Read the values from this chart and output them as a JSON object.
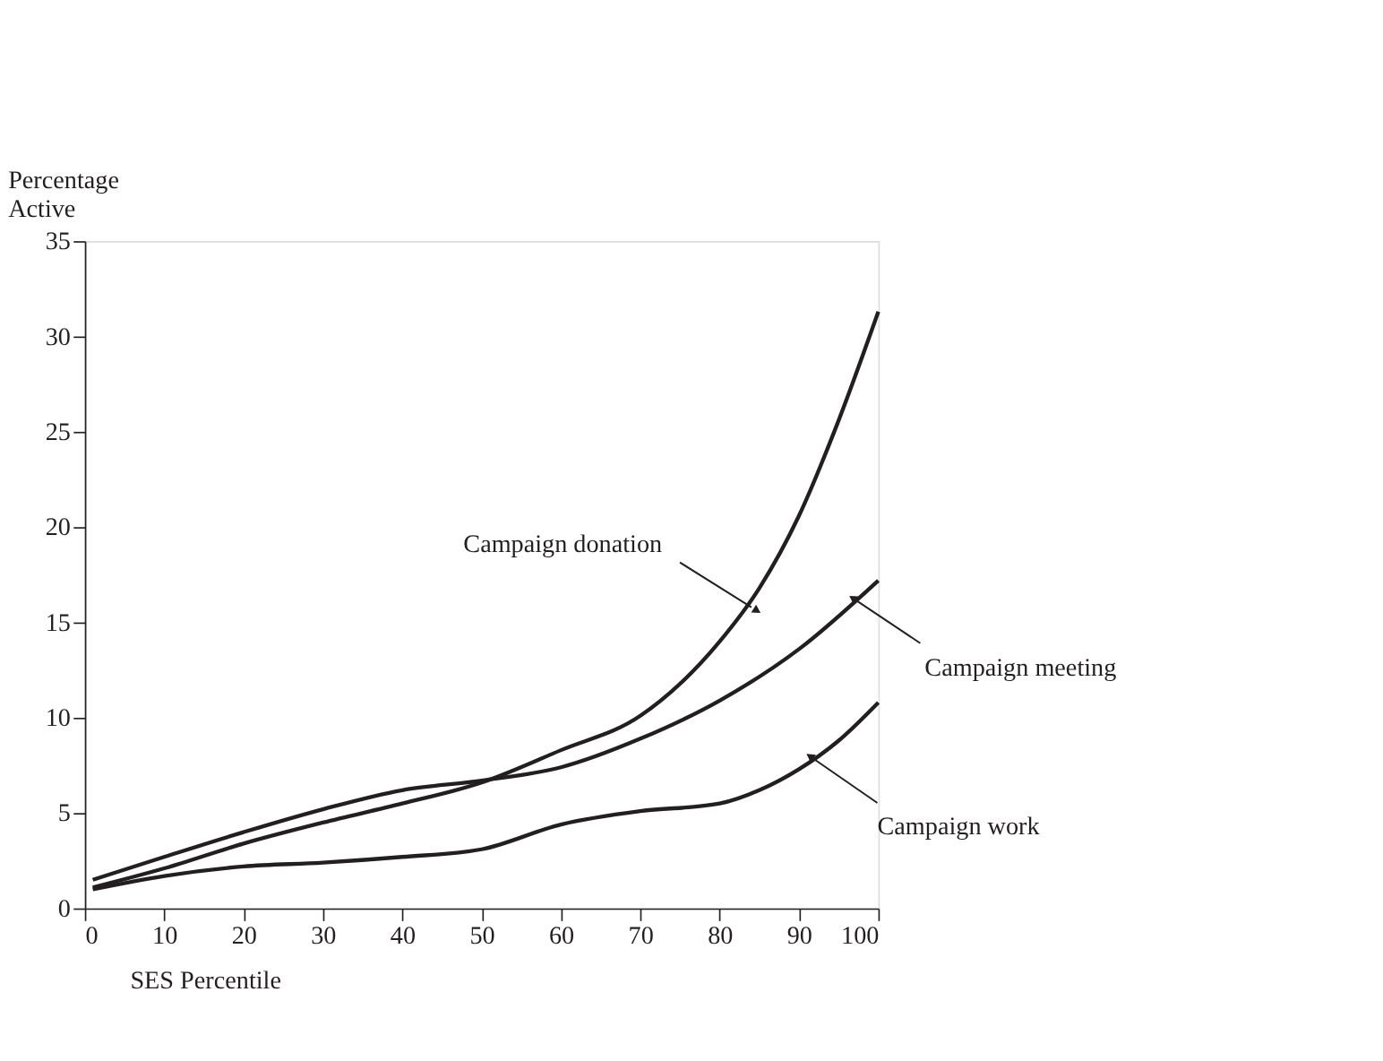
{
  "chart_data": {
    "type": "line",
    "xlabel": "SES Percentile",
    "ylabel": "Percentage\nActive",
    "xlim": [
      0,
      100
    ],
    "xticks": [
      0,
      10,
      20,
      30,
      40,
      50,
      60,
      70,
      80,
      90,
      100
    ],
    "ylim": [
      0,
      35
    ],
    "yticks": [
      0,
      5,
      10,
      15,
      20,
      25,
      30,
      35
    ],
    "grid": false,
    "line_style": "solid",
    "series": [
      {
        "color": "#231f20",
        "x": [
          1,
          10,
          20,
          30,
          40,
          50,
          60,
          70,
          80,
          85,
          90,
          95,
          100
        ],
        "values": [
          1.1,
          2.1,
          3.4,
          4.5,
          5.5,
          6.6,
          8.3,
          10.1,
          14.0,
          16.8,
          20.6,
          25.6,
          31.3
        ]
      },
      {
        "color": "#231f20",
        "x": [
          1,
          10,
          20,
          30,
          40,
          50,
          60,
          70,
          80,
          90,
          100
        ],
        "values": [
          1.5,
          2.7,
          4.0,
          5.2,
          6.2,
          6.7,
          7.4,
          8.9,
          10.9,
          13.6,
          17.2
        ]
      },
      {
        "color": "#231f20",
        "x": [
          1,
          10,
          20,
          30,
          40,
          50,
          60,
          70,
          80,
          85,
          90,
          95,
          100
        ],
        "values": [
          1.0,
          1.7,
          2.2,
          2.4,
          2.7,
          3.1,
          4.4,
          5.1,
          5.5,
          6.2,
          7.3,
          8.8,
          10.8
        ]
      }
    ],
    "annotations": [
      {
        "text": "Campaign donation",
        "x": 84,
        "y": 15.8
      },
      {
        "text": "Campaign meeting",
        "x": 97.4,
        "y": 16.1
      },
      {
        "text": "Campaign work",
        "x": 92,
        "y": 7.8
      }
    ]
  }
}
